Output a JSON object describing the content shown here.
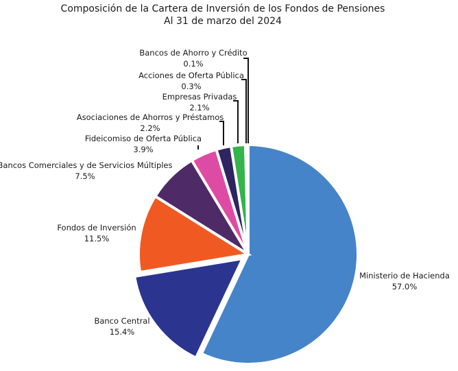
{
  "chart_data": {
    "type": "pie",
    "title": "Composición de la Cartera de Inversión de los Fondos de Pensiones",
    "subtitle": "Al 31 de marzo del 2024",
    "slices": [
      {
        "label": "Ministerio de Hacienda",
        "value": 57.0,
        "value_label": "57.0%",
        "color": "#4584C8"
      },
      {
        "label": "Banco Central",
        "value": 15.4,
        "value_label": "15.4%",
        "color": "#2B3590"
      },
      {
        "label": "Fondos de Inversión",
        "value": 11.5,
        "value_label": "11.5%",
        "color": "#F05A22"
      },
      {
        "label": "Bancos Comerciales y de Servicios Múltiples",
        "value": 7.5,
        "value_label": "7.5%",
        "color": "#4E2A66"
      },
      {
        "label": "Fideicomiso de Oferta Pública",
        "value": 3.9,
        "value_label": "3.9%",
        "color": "#DE4BA4"
      },
      {
        "label": "Asociaciones de Ahorros y Préstamos",
        "value": 2.2,
        "value_label": "2.2%",
        "color": "#2E2460"
      },
      {
        "label": "Empresas Privadas",
        "value": 2.1,
        "value_label": "2.1%",
        "color": "#34B44A"
      },
      {
        "label": "Acciones de Oferta Pública",
        "value": 0.3,
        "value_label": "0.3%",
        "color": "#1FA88C"
      },
      {
        "label": "Bancos de Ahorro y Crédito",
        "value": 0.1,
        "value_label": "0.1%",
        "color": "#0F1A8A"
      }
    ]
  }
}
